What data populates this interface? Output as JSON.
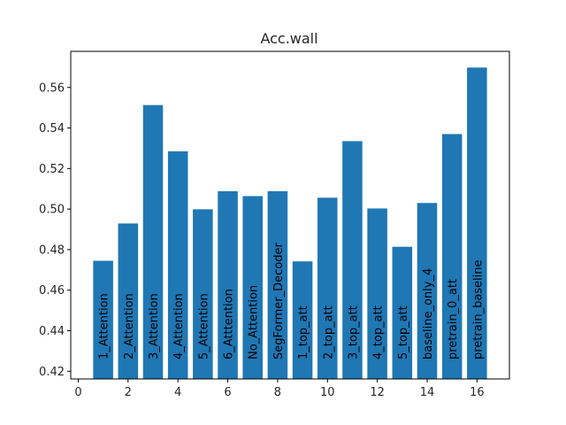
{
  "chart_data": {
    "type": "bar",
    "title": "Acc.wall",
    "xlabel": "",
    "ylabel": "",
    "x": [
      1,
      2,
      3,
      4,
      5,
      6,
      7,
      8,
      9,
      10,
      11,
      12,
      13,
      14,
      15,
      16
    ],
    "categories": [
      "1_Attention",
      "2_Attention",
      "3_Attention",
      "4_Attention",
      "5_Attention",
      "6_Atttention",
      "No_Attention",
      "SegFormer_Decoder",
      "1_top_att",
      "2_top_att",
      "3_top_att",
      "4_top_att",
      "5_top_att",
      "baseline_only_4",
      "pretrain_0_att",
      "pretrain_baseline"
    ],
    "values": [
      0.4745,
      0.4929,
      0.5513,
      0.5285,
      0.4999,
      0.5088,
      0.5064,
      0.5088,
      0.4742,
      0.5056,
      0.5335,
      0.5003,
      0.4814,
      0.503,
      0.537,
      0.5698
    ],
    "xlim": [
      -0.3,
      17.3
    ],
    "ylim": [
      0.4162,
      0.5778
    ],
    "xticks": [
      0,
      2,
      4,
      6,
      8,
      10,
      12,
      14,
      16
    ],
    "yticks": [
      0.42,
      0.44,
      0.46,
      0.48,
      0.5,
      0.52,
      0.54,
      0.56
    ],
    "ytick_labels": [
      "0.42",
      "0.44",
      "0.46",
      "0.48",
      "0.50",
      "0.52",
      "0.54",
      "0.56"
    ],
    "bar_color": "#1f77b4",
    "grid": false,
    "legend": false
  }
}
